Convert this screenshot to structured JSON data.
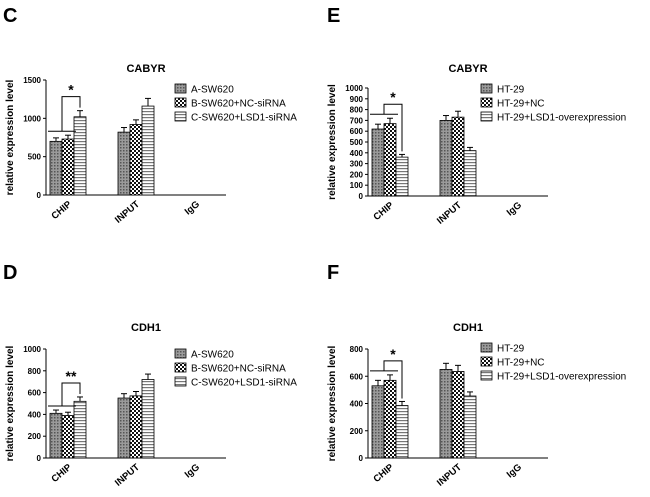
{
  "chart_data": [
    {
      "panel": "C",
      "type": "bar",
      "title": "CABYR",
      "ylabel": "relative expression level",
      "xlabel": "",
      "ylim": [
        0,
        1500
      ],
      "yticks": [
        "0",
        "500",
        "1000",
        "1500"
      ],
      "categories": [
        "CHIP",
        "INPUT",
        "IgG"
      ],
      "series": [
        {
          "name": "A-SW620",
          "values": [
            700,
            820,
            0
          ],
          "errors": [
            45,
            60,
            0
          ]
        },
        {
          "name": "B-SW620+NC-siRNA",
          "values": [
            730,
            920,
            0
          ],
          "errors": [
            50,
            60,
            0
          ]
        },
        {
          "name": "C-SW620+LSD1-siRNA",
          "values": [
            1020,
            1160,
            0
          ],
          "errors": [
            80,
            100,
            0
          ]
        }
      ],
      "significance": "*"
    },
    {
      "panel": "E",
      "type": "bar",
      "title": "CABYR",
      "ylabel": "relative expression level",
      "xlabel": "",
      "ylim": [
        0,
        1000
      ],
      "yticks": [
        "0",
        "100",
        "200",
        "300",
        "400",
        "500",
        "600",
        "700",
        "800",
        "900",
        "1000"
      ],
      "categories": [
        "CHIP",
        "INPUT",
        "IgG"
      ],
      "series": [
        {
          "name": "HT-29",
          "values": [
            620,
            700,
            0
          ],
          "errors": [
            45,
            45,
            0
          ]
        },
        {
          "name": "HT-29+NC",
          "values": [
            670,
            730,
            0
          ],
          "errors": [
            50,
            55,
            0
          ]
        },
        {
          "name": "HT-29+LSD1-overexpression",
          "values": [
            360,
            420,
            0
          ],
          "errors": [
            25,
            30,
            0
          ]
        }
      ],
      "significance": "*"
    },
    {
      "panel": "D",
      "type": "bar",
      "title": "CDH1",
      "ylabel": "relative expression level",
      "xlabel": "",
      "ylim": [
        0,
        1000
      ],
      "yticks": [
        "0",
        "200",
        "400",
        "600",
        "800",
        "1000"
      ],
      "categories": [
        "CHIP",
        "INPUT",
        "IgG"
      ],
      "series": [
        {
          "name": "A-SW620",
          "values": [
            410,
            550,
            0
          ],
          "errors": [
            30,
            40,
            0
          ]
        },
        {
          "name": "B-SW620+NC-siRNA",
          "values": [
            390,
            570,
            0
          ],
          "errors": [
            30,
            40,
            0
          ]
        },
        {
          "name": "C-SW620+LSD1-siRNA",
          "values": [
            520,
            720,
            0
          ],
          "errors": [
            40,
            50,
            0
          ]
        }
      ],
      "significance": "**"
    },
    {
      "panel": "F",
      "type": "bar",
      "title": "CDH1",
      "ylabel": "relative expression level",
      "xlabel": "",
      "ylim": [
        0,
        800
      ],
      "yticks": [
        "0",
        "200",
        "400",
        "600",
        "800"
      ],
      "categories": [
        "CHIP",
        "INPUT",
        "IgG"
      ],
      "series": [
        {
          "name": "HT-29",
          "values": [
            530,
            650,
            0
          ],
          "errors": [
            40,
            45,
            0
          ]
        },
        {
          "name": "HT-29+NC",
          "values": [
            570,
            635,
            0
          ],
          "errors": [
            40,
            45,
            0
          ]
        },
        {
          "name": "HT-29+LSD1-overexpression",
          "values": [
            385,
            455,
            0
          ],
          "errors": [
            30,
            30,
            0
          ]
        }
      ],
      "significance": "*"
    }
  ],
  "colors": {
    "bar_fill_1": "#8c8c8c",
    "bar_fill_2": "#555555",
    "bar_fill_3": "#c8c8c8",
    "axis": "#000000"
  }
}
